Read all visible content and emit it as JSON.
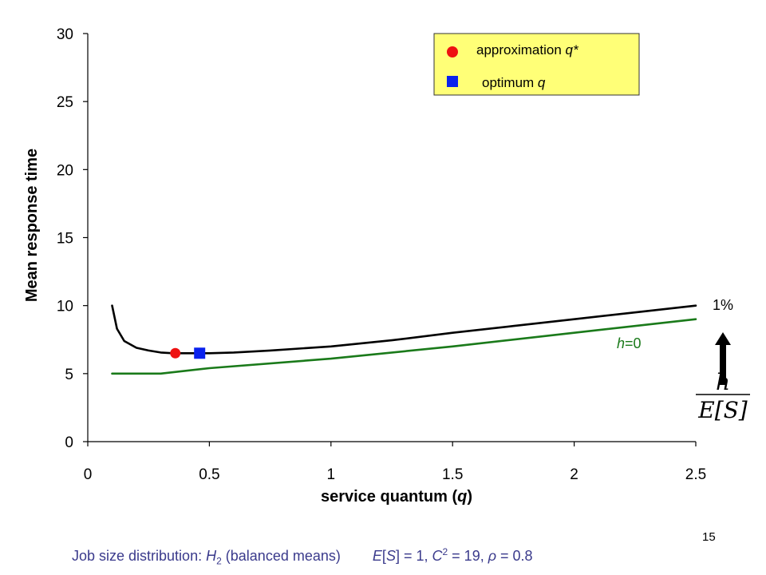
{
  "chart_data": {
    "type": "line",
    "xlabel": "service quantum (q)",
    "ylabel": "Mean response time",
    "xlim": [
      0,
      2.5
    ],
    "ylim": [
      0,
      30
    ],
    "x_ticks": [
      "0",
      "0.5",
      "1",
      "1.5",
      "2",
      "2.5"
    ],
    "y_ticks": [
      "0",
      "5",
      "10",
      "15",
      "20",
      "25",
      "30"
    ],
    "grid": false,
    "series": [
      {
        "name": "1%",
        "color": "#000000",
        "x": [
          0.1,
          0.12,
          0.15,
          0.2,
          0.25,
          0.3,
          0.35,
          0.4,
          0.5,
          0.6,
          0.75,
          1.0,
          1.25,
          1.5,
          1.75,
          2.0,
          2.25,
          2.5
        ],
        "y": [
          10.0,
          8.3,
          7.4,
          6.9,
          6.7,
          6.55,
          6.5,
          6.5,
          6.5,
          6.55,
          6.7,
          7.0,
          7.45,
          8.0,
          8.5,
          9.0,
          9.5,
          10.0
        ]
      },
      {
        "name": "h=0",
        "color": "#1a7a1a",
        "x": [
          0.1,
          0.3,
          0.5,
          1.0,
          1.5,
          2.0,
          2.5
        ],
        "y": [
          5.0,
          5.0,
          5.4,
          6.1,
          7.0,
          8.0,
          9.0
        ]
      }
    ],
    "markers": [
      {
        "name": "approximation q*",
        "shape": "circle",
        "color": "#ee1111",
        "x": 0.36,
        "y": 6.5
      },
      {
        "name": "optimum q",
        "shape": "square",
        "color": "#0a22ee",
        "x": 0.46,
        "y": 6.5
      }
    ],
    "legend": {
      "position": "top-right",
      "background": "#ffff77",
      "entries": [
        "approximation q*",
        "optimum q"
      ]
    },
    "annotations": {
      "label_1pct": "1%",
      "label_h0": "h=0",
      "arrow": "up-arrow-icon",
      "fraction_numerator": "h",
      "fraction_denominator": "E[S]"
    }
  },
  "footer": {
    "distribution": "Job size distribution: H2 (balanced means)",
    "params": "E[S] = 1, C2 = 19, ρ = 0.8"
  },
  "page_number": "15"
}
